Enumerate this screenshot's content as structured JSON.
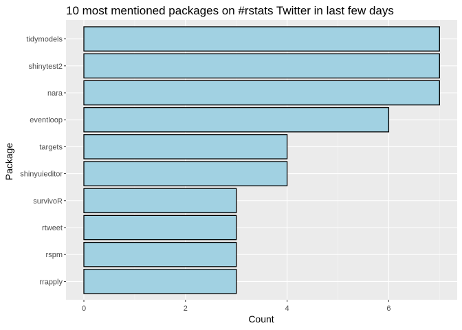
{
  "chart_data": {
    "type": "bar",
    "orientation": "horizontal",
    "title": "10 most mentioned packages on #rstats Twitter in last few days",
    "xlabel": "Count",
    "ylabel": "Package",
    "categories": [
      "tidymodels",
      "shinytest2",
      "nara",
      "eventloop",
      "targets",
      "shinyuieditor",
      "survivoR",
      "rtweet",
      "rspm",
      "rrapply"
    ],
    "values": [
      7,
      7,
      7,
      6,
      4,
      4,
      3,
      3,
      3,
      3
    ],
    "x_ticks": [
      "0",
      "2",
      "4",
      "6"
    ],
    "xlim": [
      0,
      7
    ],
    "grid": true,
    "legend": "none",
    "colors": {
      "bar_fill": "#a1d1e2",
      "bar_stroke": "#000000",
      "panel_bg": "#ebebeb",
      "grid_major": "#ffffff",
      "grid_minor": "#f5f5f5"
    }
  }
}
